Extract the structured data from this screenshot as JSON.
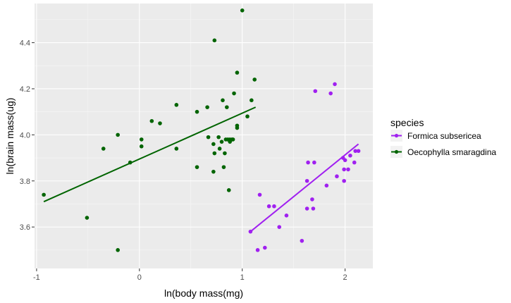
{
  "chart_data": {
    "type": "scatter",
    "xlabel": "ln(body mass(mg)",
    "ylabel": "ln(brain mass(ug)",
    "xlim": [
      -1.02,
      2.27
    ],
    "ylim": [
      3.42,
      4.57
    ],
    "x_ticks": [
      -1,
      0,
      1,
      2
    ],
    "x_tick_labels": [
      "-1",
      "0",
      "1",
      "2"
    ],
    "y_ticks": [
      3.6,
      3.8,
      4.0,
      4.2,
      4.4
    ],
    "y_tick_labels": [
      "3.6",
      "3.8",
      "4.0",
      "4.2",
      "4.4"
    ],
    "grid": true,
    "legend": {
      "title": "species",
      "position": "right"
    },
    "series": [
      {
        "name": "Formica subsericea",
        "color": "#a020f0",
        "points": [
          [
            1.08,
            3.58
          ],
          [
            1.15,
            3.5
          ],
          [
            1.17,
            3.74
          ],
          [
            1.22,
            3.51
          ],
          [
            1.26,
            3.69
          ],
          [
            1.31,
            3.69
          ],
          [
            1.36,
            3.6
          ],
          [
            1.43,
            3.65
          ],
          [
            1.58,
            3.54
          ],
          [
            1.63,
            3.68
          ],
          [
            1.63,
            3.8
          ],
          [
            1.64,
            3.88
          ],
          [
            1.68,
            3.72
          ],
          [
            1.69,
            3.68
          ],
          [
            1.7,
            3.88
          ],
          [
            1.71,
            4.19
          ],
          [
            1.82,
            3.78
          ],
          [
            1.86,
            4.18
          ],
          [
            1.9,
            4.22
          ],
          [
            1.92,
            3.82
          ],
          [
            1.98,
            3.9
          ],
          [
            1.99,
            3.85
          ],
          [
            1.99,
            3.8
          ],
          [
            2.0,
            3.89
          ],
          [
            2.03,
            3.85
          ],
          [
            2.05,
            3.91
          ],
          [
            2.09,
            3.88
          ],
          [
            2.1,
            3.93
          ],
          [
            2.13,
            3.93
          ]
        ],
        "fit": [
          [
            1.08,
            3.58
          ],
          [
            2.13,
            3.96
          ]
        ]
      },
      {
        "name": "Oecophylla smaragdina",
        "color": "#006400",
        "points": [
          [
            -0.93,
            3.74
          ],
          [
            -0.51,
            3.64
          ],
          [
            -0.35,
            3.94
          ],
          [
            -0.21,
            4.0
          ],
          [
            -0.21,
            3.5
          ],
          [
            -0.09,
            3.88
          ],
          [
            0.02,
            3.95
          ],
          [
            0.02,
            3.98
          ],
          [
            0.12,
            4.06
          ],
          [
            0.2,
            4.05
          ],
          [
            0.36,
            4.13
          ],
          [
            0.36,
            3.94
          ],
          [
            0.56,
            4.1
          ],
          [
            0.56,
            3.86
          ],
          [
            0.66,
            4.12
          ],
          [
            0.67,
            3.99
          ],
          [
            0.72,
            3.96
          ],
          [
            0.72,
            3.84
          ],
          [
            0.73,
            3.92
          ],
          [
            0.73,
            4.41
          ],
          [
            0.77,
            3.99
          ],
          [
            0.78,
            3.94
          ],
          [
            0.8,
            3.97
          ],
          [
            0.81,
            4.15
          ],
          [
            0.82,
            3.86
          ],
          [
            0.83,
            3.92
          ],
          [
            0.84,
            3.98
          ],
          [
            0.85,
            4.12
          ],
          [
            0.86,
            3.98
          ],
          [
            0.87,
            3.76
          ],
          [
            0.88,
            3.97
          ],
          [
            0.88,
            3.98
          ],
          [
            0.9,
            3.98
          ],
          [
            0.91,
            3.98
          ],
          [
            0.92,
            4.18
          ],
          [
            0.95,
            4.03
          ],
          [
            0.95,
            4.04
          ],
          [
            0.95,
            4.27
          ],
          [
            1.0,
            4.54
          ],
          [
            1.05,
            4.08
          ],
          [
            1.09,
            4.15
          ],
          [
            1.12,
            4.24
          ]
        ],
        "fit": [
          [
            -0.93,
            3.71
          ],
          [
            1.13,
            4.12
          ]
        ]
      }
    ]
  }
}
